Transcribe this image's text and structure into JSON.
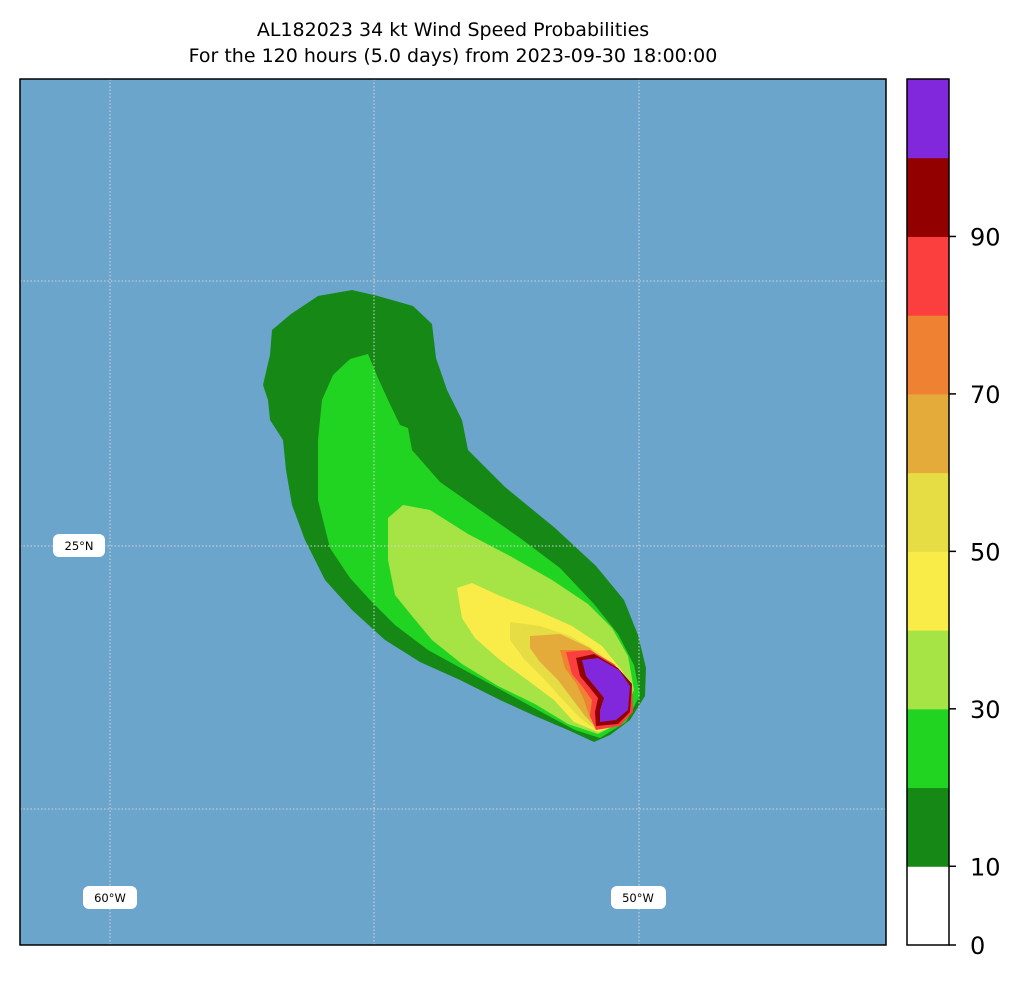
{
  "map": {
    "title_line1": "AL182023 34 kt Wind Speed Probabilities",
    "title_line2": "For the 120 hours (5.0 days) from 2023-09-30 18:00:00",
    "ocean_color": "#6ba5cb",
    "grid_labels": {
      "lat_25": "25°N",
      "lon_60": "60°W",
      "lon_50": "50°W"
    }
  },
  "colorbar": {
    "levels": [
      {
        "min": 0,
        "max": 10,
        "color": "#ffffff"
      },
      {
        "min": 10,
        "max": 20,
        "color": "#168816"
      },
      {
        "min": 20,
        "max": 30,
        "color": "#22d422"
      },
      {
        "min": 30,
        "max": 40,
        "color": "#a6e445"
      },
      {
        "min": 40,
        "max": 50,
        "color": "#faec48"
      },
      {
        "min": 50,
        "max": 60,
        "color": "#e6dc44"
      },
      {
        "min": 60,
        "max": 70,
        "color": "#e4ab3a"
      },
      {
        "min": 70,
        "max": 80,
        "color": "#ef8133"
      },
      {
        "min": 80,
        "max": 90,
        "color": "#fb3e3e"
      },
      {
        "min": 90,
        "max": 100,
        "color": "#920000"
      },
      {
        "min": 100,
        "max": 110,
        "color": "#8228dc"
      }
    ],
    "tick_labels": [
      "0",
      "10",
      "30",
      "50",
      "70",
      "90"
    ]
  }
}
